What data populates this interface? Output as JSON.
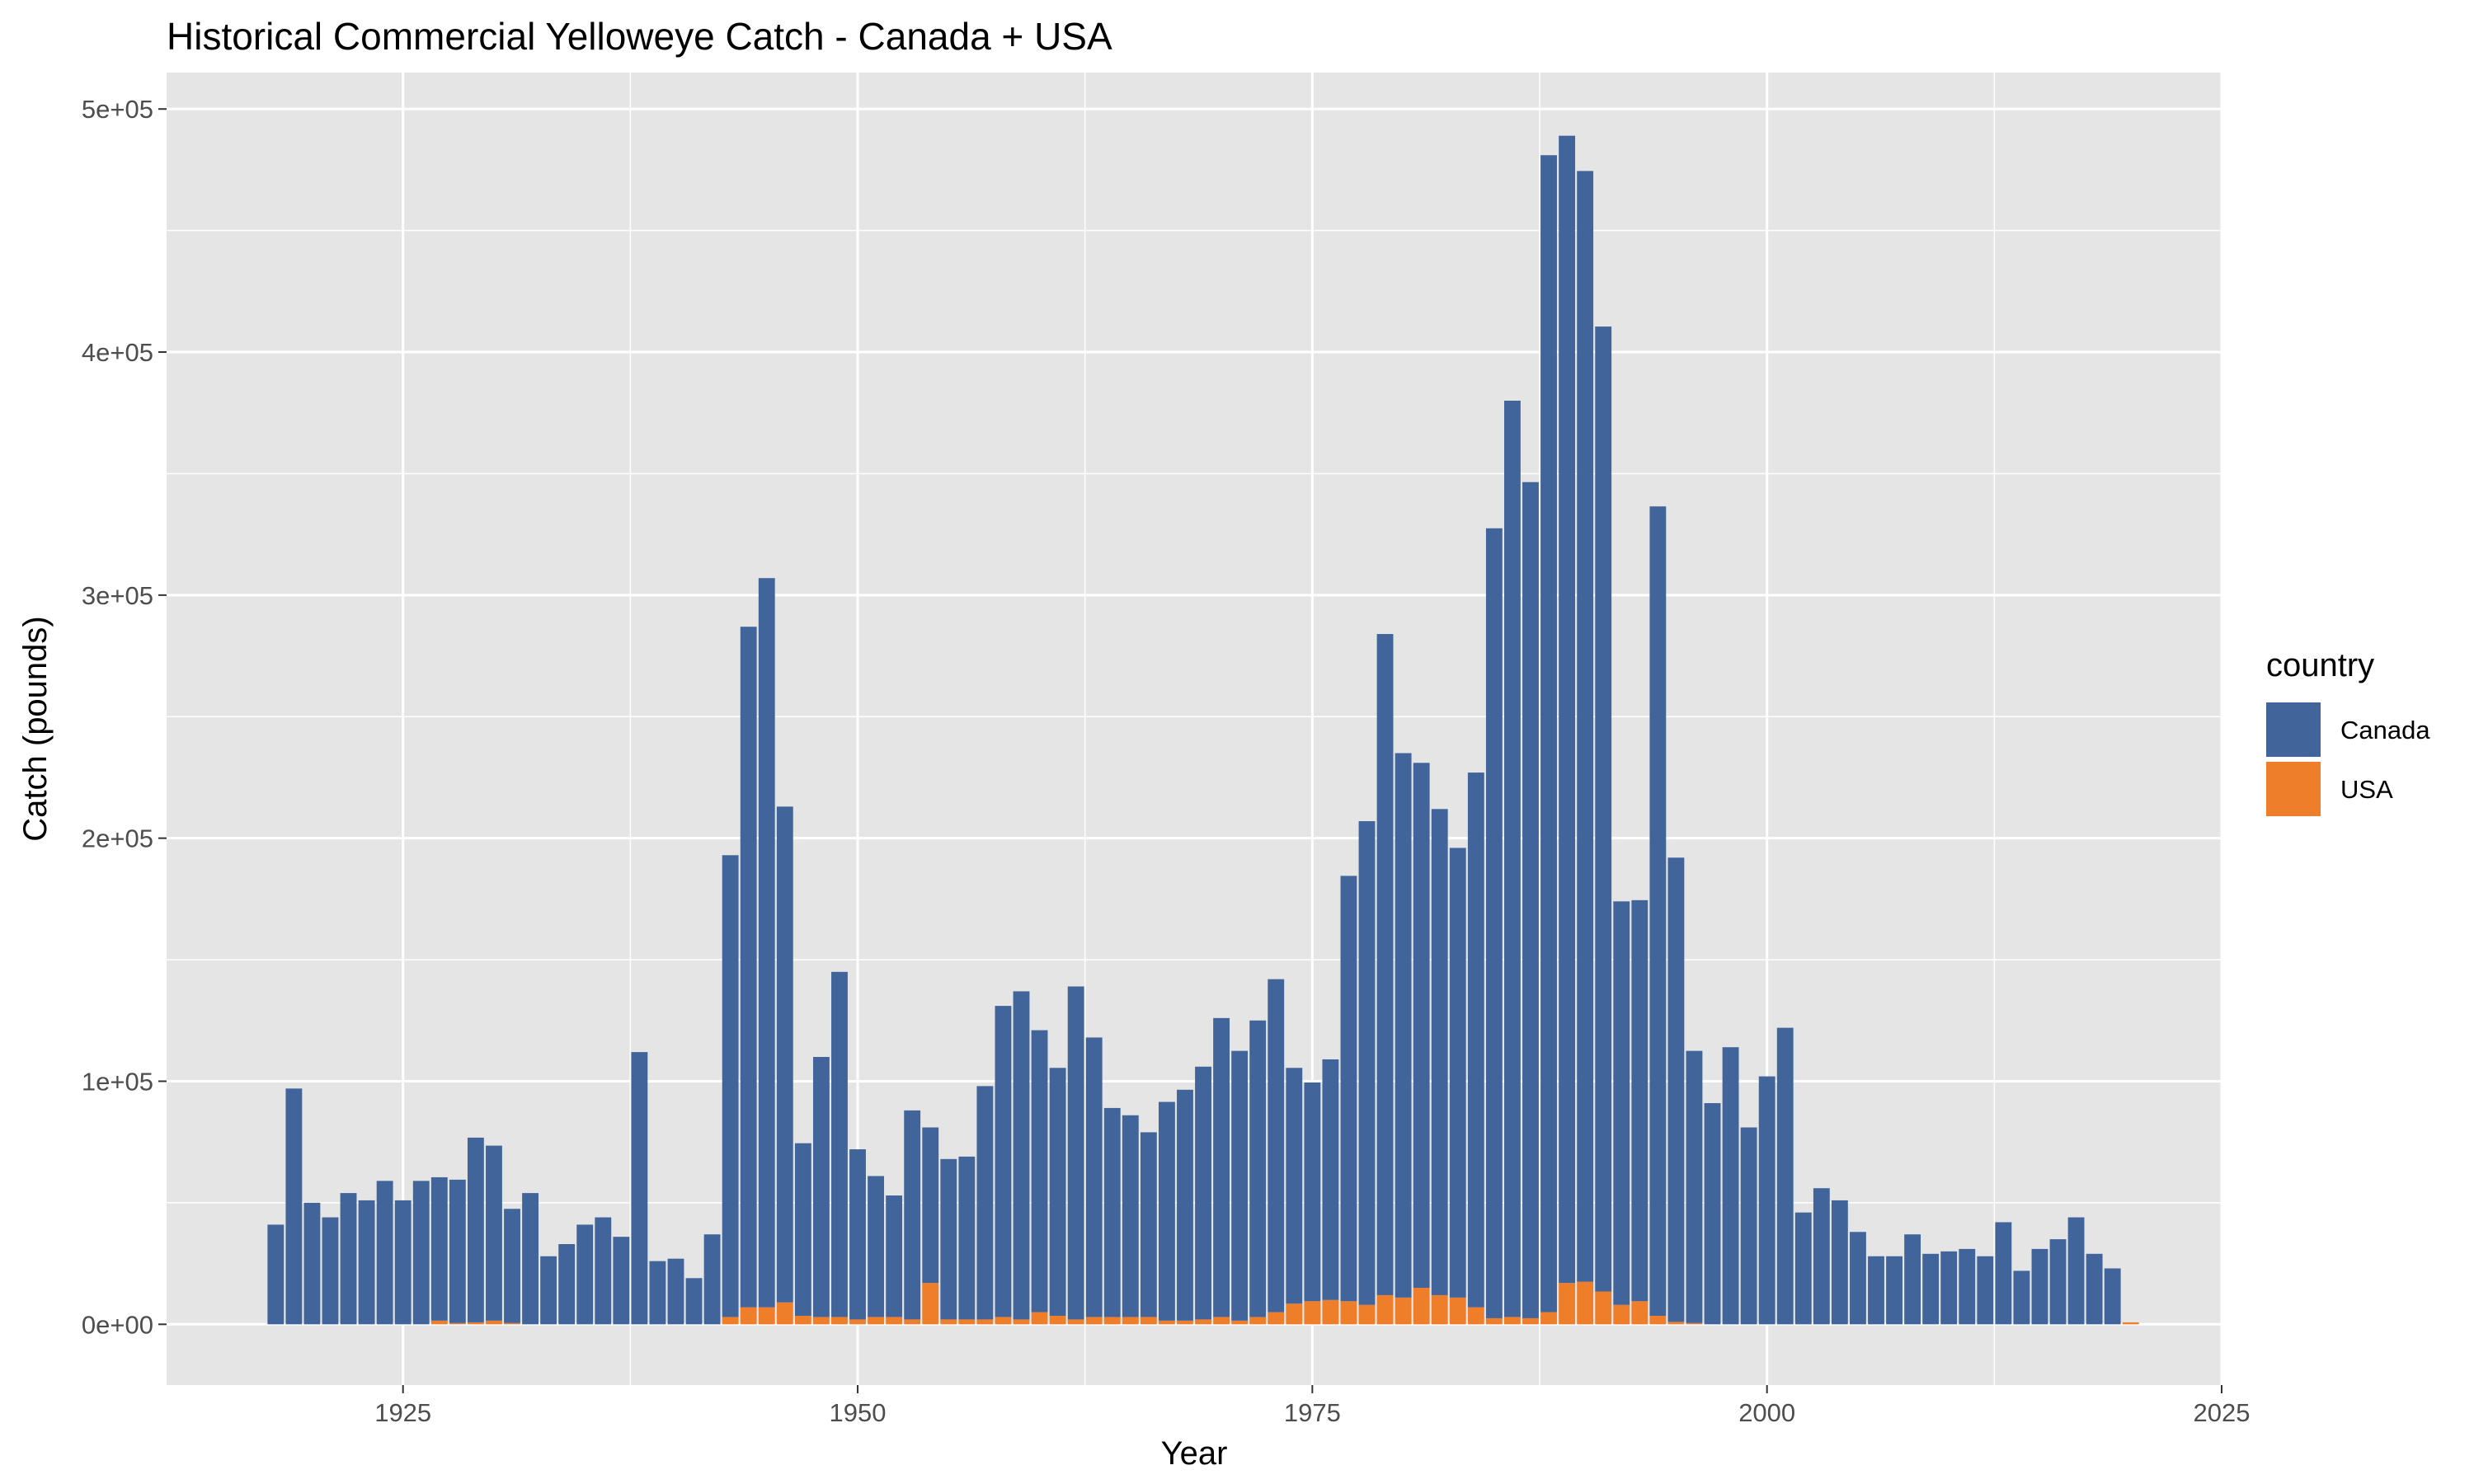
{
  "chart_data": {
    "type": "bar",
    "stacked": true,
    "title": "Historical Commercial Yelloweye Catch - Canada + USA",
    "xlabel": "Year",
    "ylabel": "Catch (pounds)",
    "xlim": [
      1912,
      2025
    ],
    "ylim": [
      -25000,
      515000
    ],
    "x_ticks": [
      1925,
      1950,
      1975,
      2000,
      2025
    ],
    "x_tick_labels": [
      "1925",
      "1950",
      "1975",
      "2000",
      "2025"
    ],
    "y_ticks": [
      0,
      100000,
      200000,
      300000,
      400000,
      500000
    ],
    "y_tick_labels": [
      "0e+00",
      "1e+05",
      "2e+05",
      "3e+05",
      "4e+05",
      "5e+05"
    ],
    "grid": true,
    "legend": {
      "title": "country",
      "position": "right"
    },
    "colors": {
      "Canada": "#41659a",
      "USA": "#ee7e2a",
      "panel": "#e5e5e5",
      "grid": "#ffffff"
    },
    "x": [
      1918,
      1919,
      1920,
      1921,
      1922,
      1923,
      1924,
      1925,
      1926,
      1927,
      1928,
      1929,
      1930,
      1931,
      1932,
      1933,
      1934,
      1935,
      1936,
      1937,
      1938,
      1939,
      1940,
      1941,
      1942,
      1943,
      1944,
      1945,
      1946,
      1947,
      1948,
      1949,
      1950,
      1951,
      1952,
      1953,
      1954,
      1955,
      1956,
      1957,
      1958,
      1959,
      1960,
      1961,
      1962,
      1963,
      1964,
      1965,
      1966,
      1967,
      1968,
      1969,
      1970,
      1971,
      1972,
      1973,
      1974,
      1975,
      1976,
      1977,
      1978,
      1979,
      1980,
      1981,
      1982,
      1983,
      1984,
      1985,
      1986,
      1987,
      1988,
      1989,
      1990,
      1991,
      1992,
      1993,
      1994,
      1995,
      1996,
      1997,
      1998,
      1999,
      2000,
      2001,
      2002,
      2003,
      2004,
      2005,
      2006,
      2007,
      2008,
      2009,
      2010,
      2011,
      2012,
      2013,
      2014,
      2015,
      2016,
      2017,
      2018,
      2019,
      2020
    ],
    "series": [
      {
        "name": "USA",
        "values": [
          0,
          0,
          0,
          0,
          0,
          0,
          0,
          0,
          0,
          1500,
          500,
          800,
          1500,
          500,
          0,
          0,
          0,
          0,
          0,
          0,
          0,
          0,
          0,
          0,
          0,
          3000,
          7000,
          7000,
          9000,
          3500,
          3000,
          3000,
          2000,
          3000,
          3000,
          2000,
          17000,
          2000,
          2000,
          2000,
          3000,
          2000,
          5000,
          3500,
          2000,
          3000,
          3000,
          3000,
          3000,
          1500,
          1500,
          2000,
          3000,
          1500,
          3000,
          5000,
          8500,
          9500,
          10000,
          9500,
          8000,
          12000,
          11000,
          15000,
          12000,
          11000,
          7000,
          2500,
          3000,
          2500,
          5000,
          17000,
          17500,
          13500,
          8000,
          9500,
          3500,
          1000,
          500,
          0,
          0,
          0,
          0,
          0,
          0,
          0,
          0,
          0,
          0,
          0,
          0,
          0,
          0,
          0,
          0,
          0,
          0,
          0,
          0,
          0,
          0,
          0,
          800
        ]
      },
      {
        "name": "Canada",
        "values": [
          41000,
          97000,
          50000,
          44000,
          54000,
          51000,
          59000,
          51000,
          59000,
          59000,
          59000,
          76000,
          72000,
          47000,
          54000,
          28000,
          33000,
          41000,
          44000,
          36000,
          112000,
          26000,
          27000,
          19000,
          37000,
          190000,
          280000,
          300000,
          204000,
          71000,
          107000,
          142000,
          70000,
          58000,
          50000,
          86000,
          64000,
          66000,
          67000,
          96000,
          128000,
          135000,
          116000,
          102000,
          137000,
          115000,
          86000,
          83000,
          76000,
          90000,
          95000,
          104000,
          123000,
          111000,
          122000,
          137000,
          97000,
          90000,
          99000,
          175000,
          199000,
          272000,
          224000,
          216000,
          200000,
          185000,
          220000,
          325000,
          377000,
          344000,
          476000,
          472000,
          457000,
          397000,
          166000,
          165000,
          333000,
          191000,
          112000,
          91000,
          114000,
          81000,
          102000,
          122000,
          46000,
          56000,
          51000,
          38000,
          28000,
          28000,
          37000,
          29000,
          30000,
          31000,
          28000,
          42000,
          22000,
          31000,
          35000,
          44000,
          29000,
          23000,
          0
        ]
      }
    ]
  }
}
